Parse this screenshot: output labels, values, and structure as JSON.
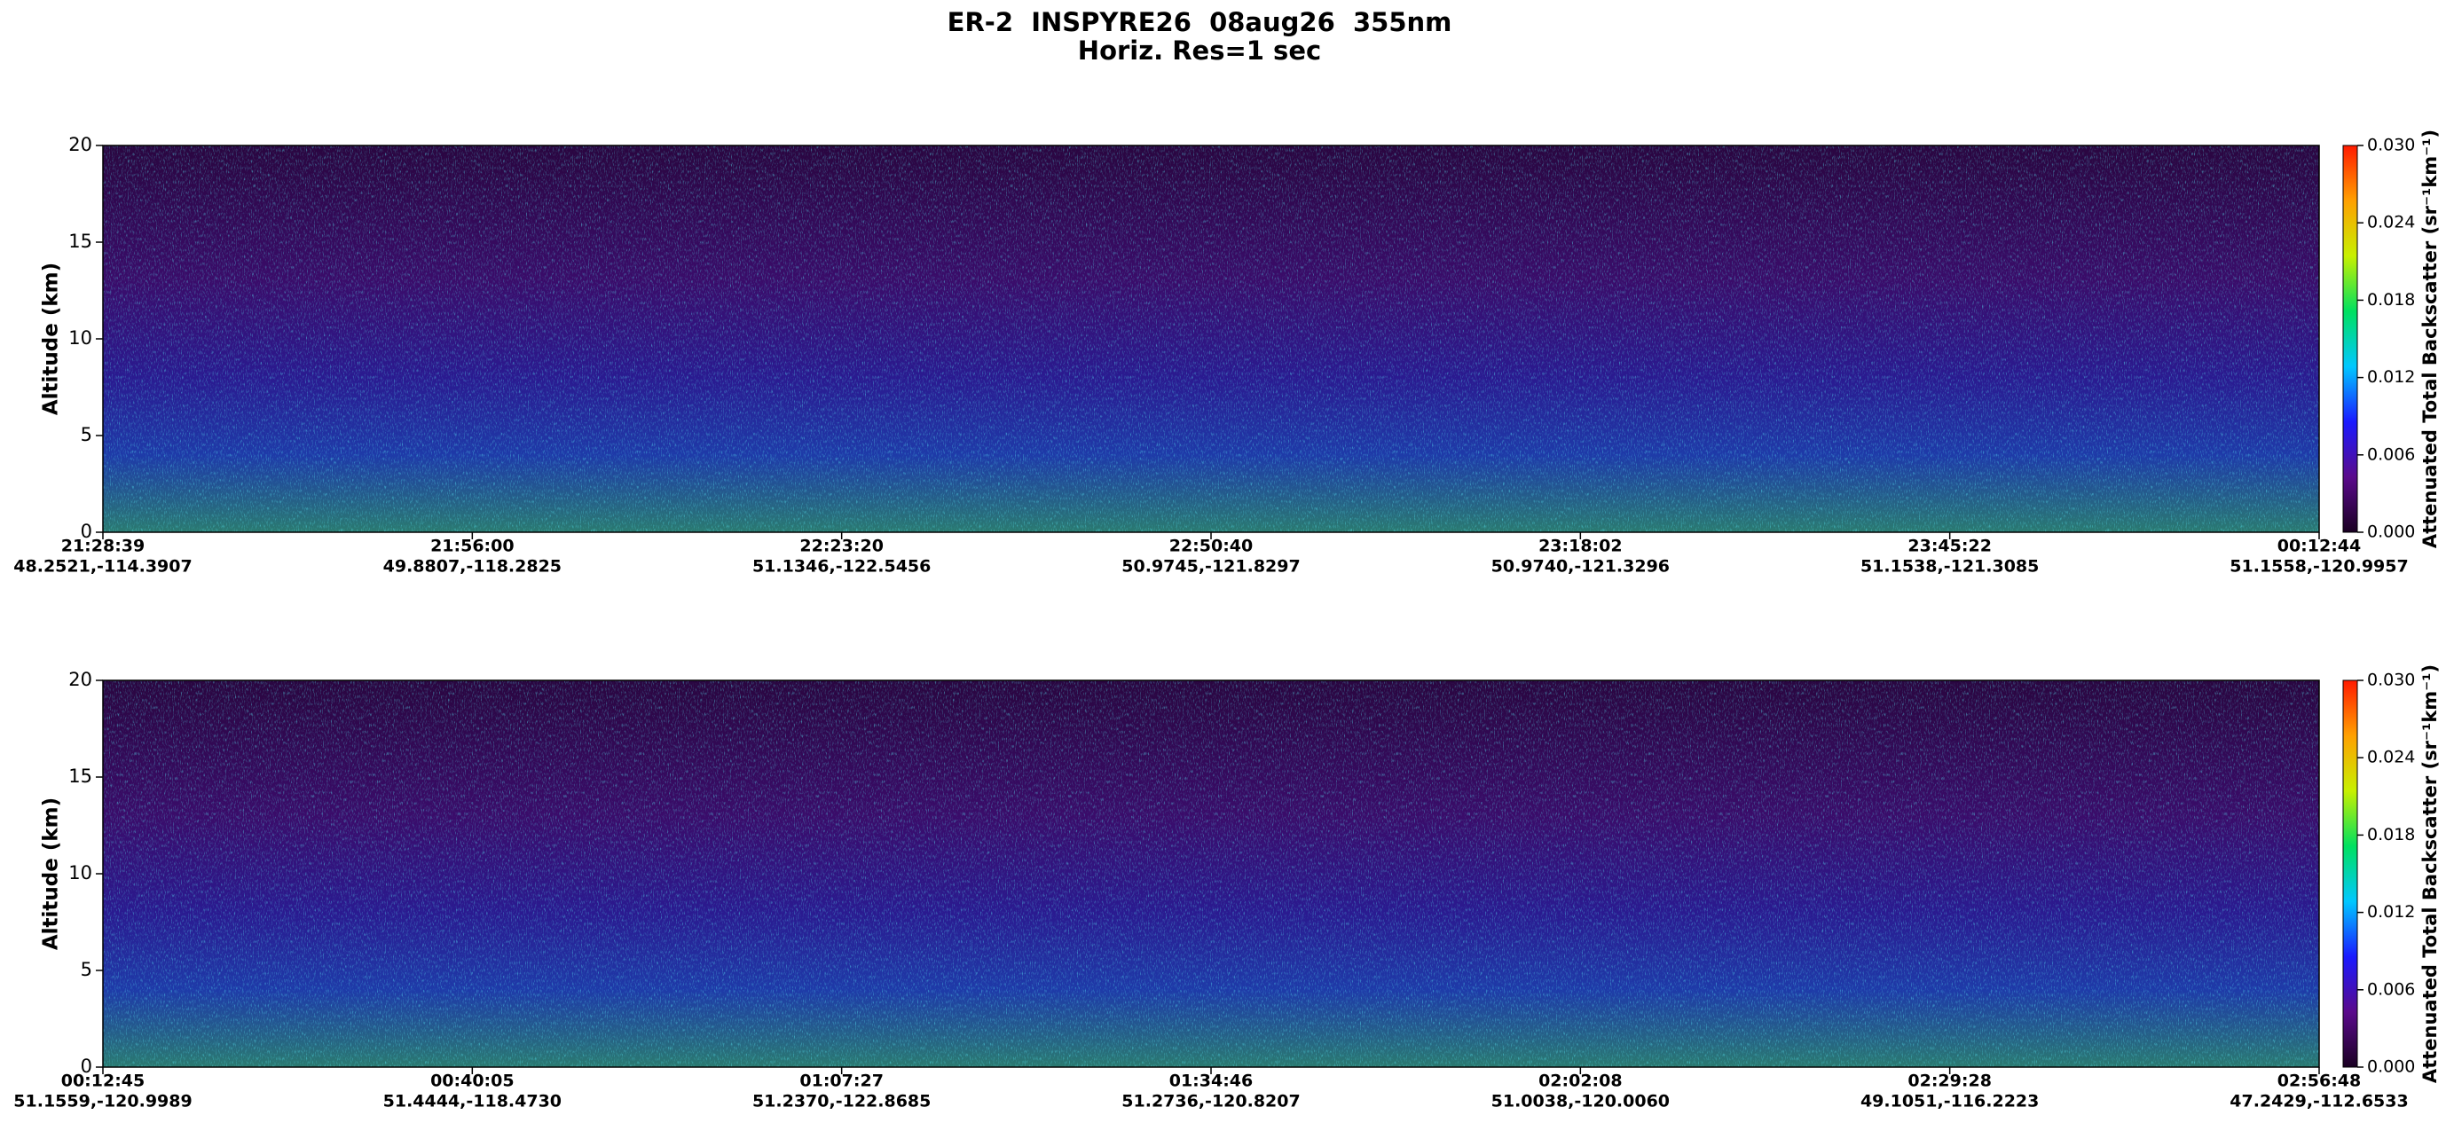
{
  "title": "ER-2  INSPYRE26  08aug26  355nm",
  "subtitle": "Horiz. Res=1 sec",
  "chart_data": [
    {
      "type": "heatmap",
      "ylabel": "Altitude (km)",
      "ylim": [
        0,
        20
      ],
      "yticks": [
        0,
        5,
        10,
        15,
        20
      ],
      "categories": [
        {
          "time": "21:28:39",
          "location": "48.2521,-114.3907"
        },
        {
          "time": "21:56:00",
          "location": "49.8807,-118.2825"
        },
        {
          "time": "22:23:20",
          "location": "51.1346,-122.5456"
        },
        {
          "time": "22:50:40",
          "location": "50.9745,-121.8297"
        },
        {
          "time": "23:18:02",
          "location": "50.9740,-121.3296"
        },
        {
          "time": "23:45:22",
          "location": "51.1538,-121.3085"
        },
        {
          "time": "00:12:44",
          "location": "51.1558,-120.9957"
        }
      ],
      "colorbar": {
        "label": "Attenuated Total Backscatter (sr⁻¹km⁻¹)",
        "lim": [
          0,
          0.03
        ],
        "ticks": [
          {
            "value": 0,
            "label": "0.000"
          },
          {
            "value": 0.006,
            "label": "0.006"
          },
          {
            "value": 0.012,
            "label": "0.012"
          },
          {
            "value": 0.018,
            "label": "0.018"
          },
          {
            "value": 0.024,
            "label": "0.024"
          },
          {
            "value": 0.03,
            "label": "0.030"
          }
        ],
        "colors": [
          "#1a0022",
          "#5a0a8c",
          "#1a1aff",
          "#00c8ff",
          "#00e060",
          "#c8f000",
          "#ffa000",
          "#ff1a00"
        ]
      }
    },
    {
      "type": "heatmap",
      "ylabel": "Altitude (km)",
      "ylim": [
        0,
        20
      ],
      "yticks": [
        0,
        5,
        10,
        15,
        20
      ],
      "categories": [
        {
          "time": "00:12:45",
          "location": "51.1559,-120.9989"
        },
        {
          "time": "00:40:05",
          "location": "51.4444,-118.4730"
        },
        {
          "time": "01:07:27",
          "location": "51.2370,-122.8685"
        },
        {
          "time": "01:34:46",
          "location": "51.2736,-120.8207"
        },
        {
          "time": "02:02:08",
          "location": "51.0038,-120.0060"
        },
        {
          "time": "02:29:28",
          "location": "49.1051,-116.2223"
        },
        {
          "time": "02:56:48",
          "location": "47.2429,-112.6533"
        }
      ],
      "colorbar": {
        "label": "Attenuated Total Backscatter (sr⁻¹km⁻¹)",
        "lim": [
          0,
          0.03
        ],
        "ticks": [
          {
            "value": 0,
            "label": "0.000"
          },
          {
            "value": 0.006,
            "label": "0.006"
          },
          {
            "value": 0.012,
            "label": "0.012"
          },
          {
            "value": 0.018,
            "label": "0.018"
          },
          {
            "value": 0.024,
            "label": "0.024"
          },
          {
            "value": 0.03,
            "label": "0.030"
          }
        ],
        "colors": [
          "#1a0022",
          "#5a0a8c",
          "#1a1aff",
          "#00c8ff",
          "#00e060",
          "#c8f000",
          "#ffa000",
          "#ff1a00"
        ]
      }
    }
  ]
}
